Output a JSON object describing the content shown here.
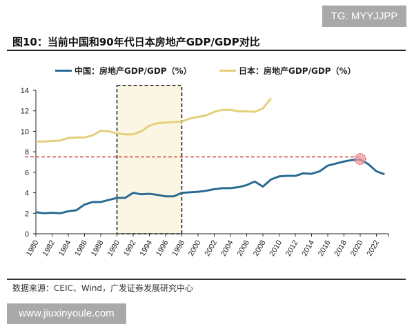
{
  "title": "图10：当前中国和90年代日本房地产GDP/GDP对比",
  "source": "数据来源：CEIC、Wind，广发证券发展研究中心",
  "watermarks": {
    "top": "TG: MYYJJPP",
    "bottom": "www.jiuxinyoule.com"
  },
  "chart_data": {
    "type": "line",
    "title": "",
    "xlabel": "",
    "ylabel": "",
    "xlim": [
      1980,
      2023
    ],
    "ylim": [
      0,
      14
    ],
    "yticks": [
      0,
      2,
      4,
      6,
      8,
      10,
      12,
      14
    ],
    "xticks": [
      1980,
      1982,
      1984,
      1986,
      1988,
      1990,
      1992,
      1994,
      1996,
      1998,
      2000,
      2002,
      2004,
      2006,
      2008,
      2010,
      2012,
      2014,
      2016,
      2018,
      2020,
      2022
    ],
    "grid": false,
    "legend": "top",
    "series": [
      {
        "name": "中国：房地产GDP/GDP（%）",
        "color": "#2a6a93",
        "x": [
          1980,
          1981,
          1982,
          1983,
          1984,
          1985,
          1986,
          1987,
          1988,
          1989,
          1990,
          1991,
          1992,
          1993,
          1994,
          1995,
          1996,
          1997,
          1998,
          1999,
          2000,
          2001,
          2002,
          2003,
          2004,
          2005,
          2006,
          2007,
          2008,
          2009,
          2010,
          2011,
          2012,
          2013,
          2014,
          2015,
          2016,
          2017,
          2018,
          2019,
          2020,
          2021,
          2022,
          2023
        ],
        "values": [
          2.1,
          2.0,
          2.05,
          2.0,
          2.2,
          2.3,
          2.85,
          3.1,
          3.1,
          3.3,
          3.5,
          3.5,
          4.0,
          3.85,
          3.9,
          3.8,
          3.65,
          3.65,
          4.0,
          4.05,
          4.1,
          4.2,
          4.35,
          4.45,
          4.45,
          4.55,
          4.75,
          5.1,
          4.6,
          5.3,
          5.6,
          5.65,
          5.65,
          5.9,
          5.85,
          6.1,
          6.65,
          6.85,
          7.05,
          7.2,
          7.25,
          6.8,
          6.1,
          5.8
        ]
      },
      {
        "name": "日本：房地产GDP/GDP（%）",
        "color": "#e3cf7a",
        "x": [
          1980,
          1981,
          1982,
          1983,
          1984,
          1985,
          1986,
          1987,
          1988,
          1989,
          1990,
          1991,
          1992,
          1993,
          1994,
          1995,
          1996,
          1997,
          1998,
          1999,
          2000,
          2001,
          2002,
          2003,
          2004,
          2005,
          2006,
          2007,
          2008,
          2009
        ],
        "values": [
          9.0,
          9.0,
          9.05,
          9.1,
          9.35,
          9.4,
          9.4,
          9.6,
          10.05,
          10.0,
          9.8,
          9.7,
          9.7,
          10.0,
          10.55,
          10.8,
          10.85,
          10.9,
          10.95,
          11.25,
          11.4,
          11.55,
          11.9,
          12.1,
          12.1,
          11.95,
          11.95,
          11.9,
          12.25,
          13.2
        ]
      }
    ],
    "annotations": {
      "reference_line": {
        "y": 7.5,
        "color": "#c0392b",
        "style": "dashed"
      },
      "highlight_box": {
        "x": [
          1990,
          1998
        ],
        "fill": "#fbf6e3",
        "style": "dashed"
      },
      "highlight_point": {
        "x": 2020,
        "y": 7.3,
        "color": "#f19aa0"
      }
    }
  }
}
